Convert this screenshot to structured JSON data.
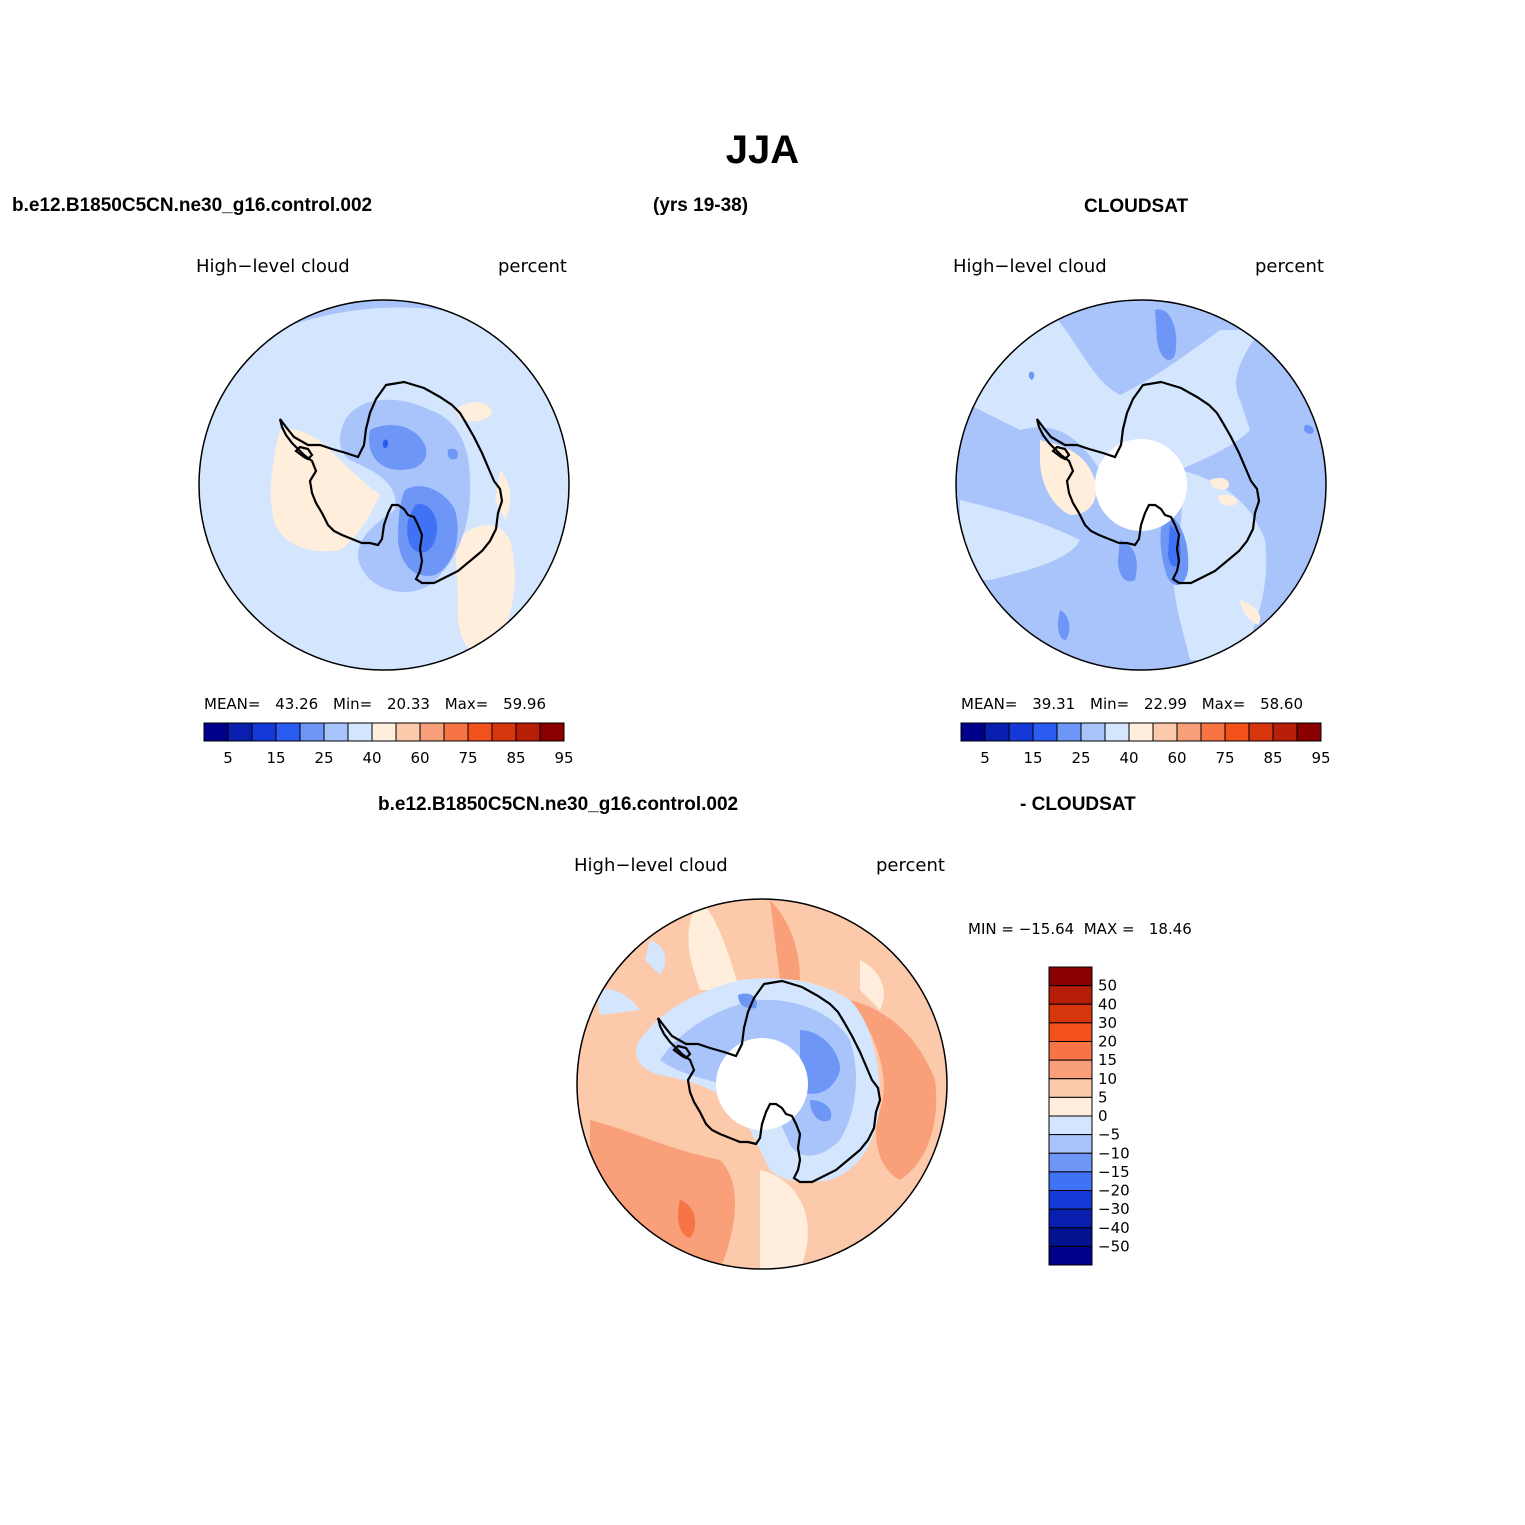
{
  "title": "JJA",
  "header": {
    "case_name": "b.e12.B1850C5CN.ne30_g16.control.002",
    "years": "(yrs 19-38)",
    "obs_name": "CLOUDSAT"
  },
  "panels": [
    {
      "variable": "High−level cloud",
      "units": "percent",
      "stats": {
        "mean_label": "MEAN=",
        "mean": "43.26",
        "min_label": "Min=",
        "min": "20.33",
        "max_label": "Max=",
        "max": "59.96"
      }
    },
    {
      "variable": "High−level cloud",
      "units": "percent",
      "stats": {
        "mean_label": "MEAN=",
        "mean": "39.31",
        "min_label": "Min=",
        "min": "22.99",
        "max_label": "Max=",
        "max": "58.60"
      }
    }
  ],
  "diff_panel": {
    "title_left": "b.e12.B1850C5CN.ne30_g16.control.002",
    "title_right": "- CLOUDSAT",
    "variable": "High−level cloud",
    "units": "percent",
    "minmax": "MIN = −15.64  MAX =   18.46"
  },
  "colorbar": {
    "labels": [
      "5",
      "15",
      "25",
      "40",
      "60",
      "75",
      "85",
      "95"
    ],
    "colors": [
      "#00008a",
      "#0a1fb0",
      "#1538d8",
      "#2a5cf2",
      "#6d96f7",
      "#a9c4fb",
      "#d4e6fd",
      "#ffeedc",
      "#fdc9ab",
      "#f9a07b",
      "#f77544",
      "#f2511b",
      "#d8360c",
      "#b61e08",
      "#8a0000"
    ]
  },
  "diff_colorbar": {
    "labels": [
      "50",
      "40",
      "30",
      "20",
      "15",
      "10",
      "5",
      "0",
      "−5",
      "−10",
      "−15",
      "−20",
      "−30",
      "−40",
      "−50"
    ],
    "colors": [
      "#8a0000",
      "#b61e08",
      "#d8360c",
      "#f2511b",
      "#f77544",
      "#f9a07b",
      "#fdc9ab",
      "#ffeedc",
      "#d4e6fd",
      "#a9c4fb",
      "#6d96f7",
      "#3f72f5",
      "#1538d8",
      "#0a1fb0",
      "#03138f",
      "#00008a"
    ]
  }
}
